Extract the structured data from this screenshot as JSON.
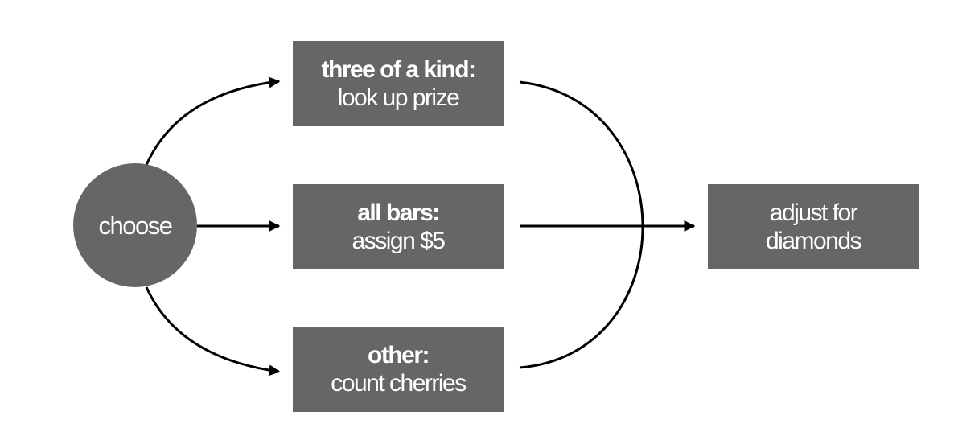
{
  "diagram": {
    "start": {
      "label": "choose"
    },
    "branches": [
      {
        "title": "three of a kind:",
        "text": "look up prize"
      },
      {
        "title": "all bars:",
        "text": "assign $5"
      },
      {
        "title": "other:",
        "text": "count cherries"
      }
    ],
    "end": {
      "line1": "adjust for",
      "line2": "diamonds"
    },
    "colors": {
      "node_fill": "#666666",
      "node_text": "#ffffff",
      "connector": "#000000",
      "background": "#ffffff"
    },
    "icons": {
      "connector_tip": "arrowhead-icon"
    }
  }
}
